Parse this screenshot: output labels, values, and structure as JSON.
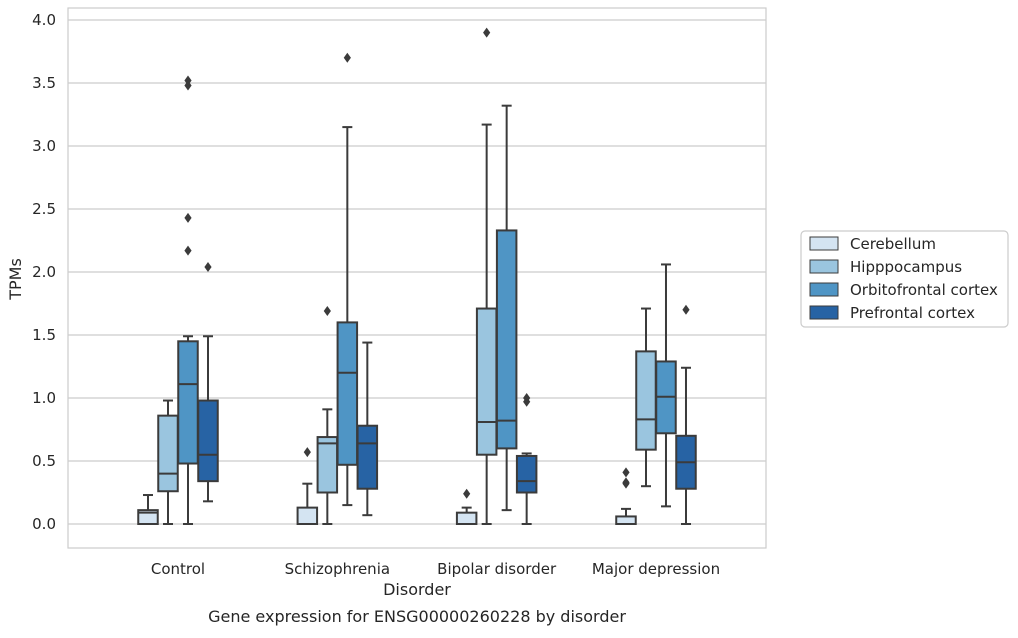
{
  "chart_data": {
    "type": "box",
    "title": "",
    "caption": "Gene expression for ENSG00000260228 by disorder",
    "xlabel": "Disorder",
    "ylabel": "TPMs",
    "ylim": [
      -0.19,
      4.1
    ],
    "yticks": [
      0.0,
      0.5,
      1.0,
      1.5,
      2.0,
      2.5,
      3.0,
      3.5,
      4.0
    ],
    "ytick_labels": [
      "0.0",
      "0.5",
      "1.0",
      "1.5",
      "2.0",
      "2.5",
      "3.0",
      "3.5",
      "4.0"
    ],
    "grid": true,
    "legend_placement": "right-center",
    "categories": [
      "Control",
      "Schizophrenia",
      "Bipolar disorder",
      "Major depression"
    ],
    "series": [
      {
        "name": "Cerebellum",
        "color": "#d4e4f2",
        "boxes": [
          {
            "whislo": 0.0,
            "q1": 0.0,
            "med": 0.09,
            "q3": 0.11,
            "whishi": 0.23,
            "fliers": []
          },
          {
            "whislo": 0.0,
            "q1": 0.0,
            "med": 0.0,
            "q3": 0.13,
            "whishi": 0.32,
            "fliers": [
              0.57
            ]
          },
          {
            "whislo": 0.0,
            "q1": 0.0,
            "med": 0.0,
            "q3": 0.09,
            "whishi": 0.13,
            "fliers": [
              0.24
            ]
          },
          {
            "whislo": 0.0,
            "q1": 0.0,
            "med": 0.0,
            "q3": 0.06,
            "whishi": 0.12,
            "fliers": [
              0.32,
              0.33,
              0.41
            ]
          }
        ]
      },
      {
        "name": "Hipppocampus",
        "color": "#9ac5df",
        "boxes": [
          {
            "whislo": 0.0,
            "q1": 0.26,
            "med": 0.4,
            "q3": 0.86,
            "whishi": 0.98,
            "fliers": []
          },
          {
            "whislo": 0.0,
            "q1": 0.25,
            "med": 0.64,
            "q3": 0.69,
            "whishi": 0.91,
            "fliers": [
              1.69
            ]
          },
          {
            "whislo": 0.0,
            "q1": 0.55,
            "med": 0.81,
            "q3": 1.71,
            "whishi": 3.17,
            "fliers": [
              3.9
            ]
          },
          {
            "whislo": 0.3,
            "q1": 0.59,
            "med": 0.83,
            "q3": 1.37,
            "whishi": 1.71,
            "fliers": []
          }
        ]
      },
      {
        "name": "Orbitofrontal cortex",
        "color": "#4f95c5",
        "boxes": [
          {
            "whislo": 0.0,
            "q1": 0.48,
            "med": 1.11,
            "q3": 1.45,
            "whishi": 1.49,
            "fliers": [
              2.17,
              2.43,
              3.48,
              3.52
            ]
          },
          {
            "whislo": 0.15,
            "q1": 0.47,
            "med": 1.2,
            "q3": 1.6,
            "whishi": 3.15,
            "fliers": [
              3.7
            ]
          },
          {
            "whislo": 0.11,
            "q1": 0.6,
            "med": 0.82,
            "q3": 2.33,
            "whishi": 3.32,
            "fliers": []
          },
          {
            "whislo": 0.14,
            "q1": 0.72,
            "med": 1.01,
            "q3": 1.29,
            "whishi": 2.06,
            "fliers": []
          }
        ]
      },
      {
        "name": "Prefrontal cortex",
        "color": "#2763a4",
        "boxes": [
          {
            "whislo": 0.18,
            "q1": 0.34,
            "med": 0.55,
            "q3": 0.98,
            "whishi": 1.49,
            "fliers": [
              2.04
            ]
          },
          {
            "whislo": 0.07,
            "q1": 0.28,
            "med": 0.64,
            "q3": 0.78,
            "whishi": 1.44,
            "fliers": []
          },
          {
            "whislo": 0.0,
            "q1": 0.25,
            "med": 0.34,
            "q3": 0.54,
            "whishi": 0.56,
            "fliers": [
              0.97,
              1.0
            ]
          },
          {
            "whislo": 0.0,
            "q1": 0.28,
            "med": 0.49,
            "q3": 0.7,
            "whishi": 1.24,
            "fliers": [
              1.7
            ]
          }
        ]
      }
    ],
    "styles": {
      "grid_color": "#cccccc",
      "spine_color": "#cccccc",
      "line_color": "#3b3b3b",
      "legend_border": "#cccccc"
    }
  }
}
